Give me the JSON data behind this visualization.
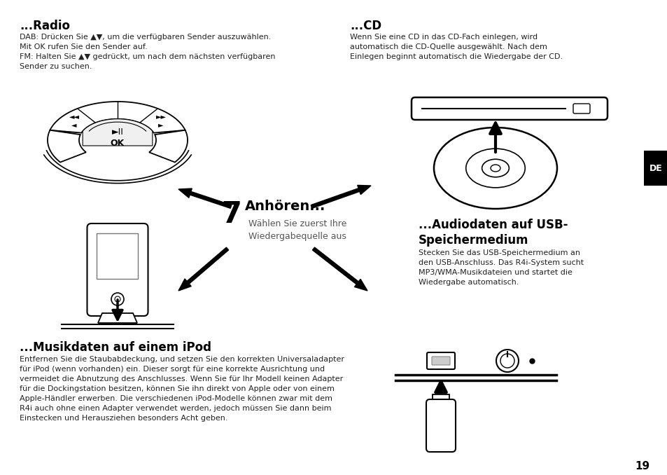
{
  "bg_color": "#ffffff",
  "page_number": "19",
  "sections": {
    "radio": {
      "title": "...Radio",
      "body": "DAB: Drücken Sie ▲▼, um die verfügbaren Sender auszuwählen.\nMit OK rufen Sie den Sender auf.\nFM: Halten Sie ▲▼ gedrückt, um nach dem nächsten verfügbaren\nSender zu suchen."
    },
    "cd": {
      "title": "...CD",
      "body": "Wenn Sie eine CD in das CD-Fach einlegen, wird\nautomatisch die CD-Quelle ausgewählt. Nach dem\nEinlegen beginnt automatisch die Wiedergabe der CD."
    },
    "ipod": {
      "title": "...Musikdaten auf einem iPod",
      "body": "Entfernen Sie die Staubabdeckung, und setzen Sie den korrekten Universaladapter\nfür iPod (wenn vorhanden) ein. Dieser sorgt für eine korrekte Ausrichtung und\nvermeidet die Abnutzung des Anschlusses. Wenn Sie für Ihr Modell keinen Adapter\nfür die Dockingstation besitzen, können Sie ihn direkt von Apple oder von einem\nApple-Händler erwerben. Die verschiedenen iPod-Modelle können zwar mit dem\nR4i auch ohne einen Adapter verwendet werden, jedoch müssen Sie dann beim\nEinstecken und Herausziehen besonders Acht geben."
    },
    "usb": {
      "title": "...Audiodaten auf USB-\nSpeichermedium",
      "body": "Stecken Sie das USB-Speichermedium an\nden USB-Anschluss. Das R4i-System sucht\nMP3/WMA-Musikdateien und startet die\nWiedergabe automatisch."
    },
    "center": {
      "number": "7",
      "title": "Anhören...",
      "body": "Wählen Sie zuerst Ihre\nWiedergabequelle aus"
    }
  }
}
